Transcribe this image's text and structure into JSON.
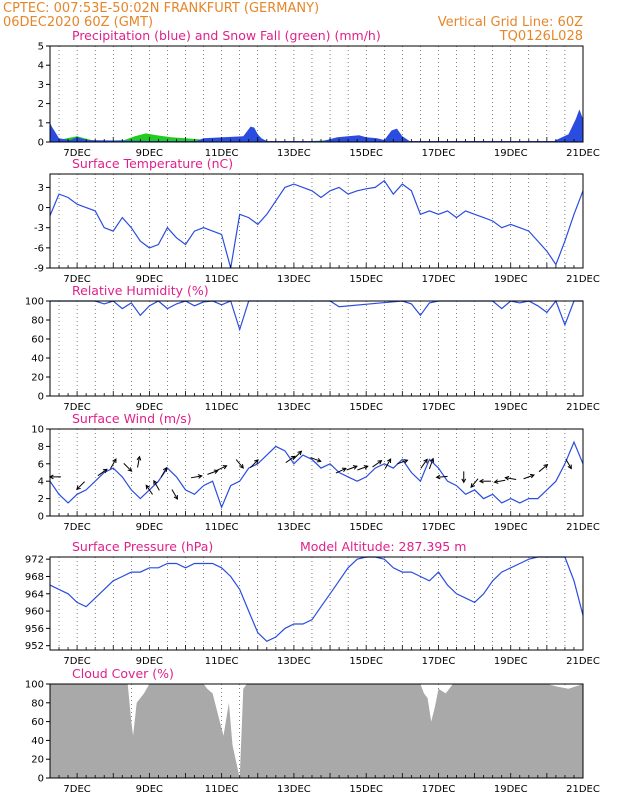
{
  "header": {
    "line1_left": "CPTEC:   007:53E-50:02N  FRANKFURT (GERMANY)",
    "line2_left": "06DEC2020 60Z (GMT)",
    "line2_right": "Vertical Grid Line: 60Z",
    "line3_right": "TQ0126L028"
  },
  "colors": {
    "header": "#e6862a",
    "title": "#e0208a",
    "line": "#2a4de0",
    "rain": "#2a4de0",
    "snow": "#1fcc1f",
    "cloud": "#a9a9a9",
    "arrow": "#000000"
  },
  "x_days": [
    "7DEC",
    "9DEC",
    "11DEC",
    "13DEC",
    "15DEC",
    "17DEC",
    "19DEC",
    "21DEC"
  ],
  "chart_data": [
    {
      "type": "area",
      "title": "Precipitation (blue) and Snow Fall (green) (mm/h)",
      "ylim": [
        0,
        5
      ],
      "yticks": [
        0,
        1,
        2,
        3,
        4,
        5
      ],
      "series": [
        {
          "name": "Precipitation",
          "x": [
            6.25,
            6.3,
            6.4,
            6.5,
            6.8,
            7.0,
            7.1,
            7.3,
            9.0,
            10.2,
            10.3,
            10.5,
            11.6,
            11.8,
            11.9,
            12.0,
            12.1,
            12.25,
            13.8,
            14.2,
            14.5,
            14.8,
            15.0,
            15.3,
            15.5,
            15.7,
            15.85,
            16.0,
            16.2,
            20.2,
            20.6,
            20.8,
            20.9,
            21.0
          ],
          "values": [
            1.0,
            0.8,
            0.5,
            0.2,
            0.1,
            0.25,
            0.2,
            0.1,
            0.05,
            0.05,
            0.05,
            0.2,
            0.3,
            0.8,
            0.75,
            0.4,
            0.2,
            0.05,
            0.05,
            0.25,
            0.3,
            0.35,
            0.25,
            0.2,
            0.1,
            0.6,
            0.7,
            0.3,
            0.05,
            0.05,
            0.4,
            1.2,
            1.7,
            1.2
          ]
        },
        {
          "name": "Snow Fall",
          "x": [
            6.3,
            6.6,
            7.0,
            7.2,
            7.5,
            8.3,
            8.6,
            8.9,
            9.2,
            9.6,
            10.0,
            10.3,
            10.6,
            11.0,
            11.4,
            11.9,
            12.2,
            12.6,
            13.0,
            13.5,
            14.0,
            14.5,
            15.0,
            16.5,
            17.0,
            18.0
          ],
          "values": [
            0.2,
            0.15,
            0.3,
            0.2,
            0.05,
            0.1,
            0.3,
            0.45,
            0.35,
            0.25,
            0.2,
            0.15,
            0.1,
            0.1,
            0.05,
            0.05,
            0.02,
            0.05,
            0.05,
            0.05,
            0.1,
            0.05,
            0.02,
            0.02,
            0.02,
            0.02
          ]
        }
      ]
    },
    {
      "type": "line",
      "title": "Surface Temperature (nC)",
      "ylim": [
        -9,
        5
      ],
      "yticks": [
        -9,
        -6,
        -3,
        0,
        3
      ],
      "x": [
        6.25,
        6.5,
        6.75,
        7.0,
        7.25,
        7.5,
        7.75,
        8.0,
        8.25,
        8.5,
        8.75,
        9.0,
        9.25,
        9.5,
        9.75,
        10.0,
        10.25,
        10.5,
        10.75,
        11.0,
        11.25,
        11.5,
        11.75,
        12.0,
        12.25,
        12.5,
        12.75,
        13.0,
        13.25,
        13.5,
        13.75,
        14.0,
        14.25,
        14.5,
        14.75,
        15.0,
        15.25,
        15.5,
        15.75,
        16.0,
        16.25,
        16.5,
        16.75,
        17.0,
        17.25,
        17.5,
        17.75,
        18.0,
        18.25,
        18.5,
        18.75,
        19.0,
        19.25,
        19.5,
        19.75,
        20.0,
        20.25,
        20.5,
        20.75,
        21.0
      ],
      "values": [
        -1.2,
        2.0,
        1.5,
        0.5,
        0.0,
        -0.5,
        -3.0,
        -3.5,
        -1.5,
        -3.0,
        -5.0,
        -6.0,
        -5.5,
        -3.0,
        -4.5,
        -5.5,
        -3.5,
        -3.0,
        -3.5,
        -4.0,
        -9.0,
        -1.0,
        -1.5,
        -2.5,
        -1.0,
        1.0,
        3.0,
        3.5,
        3.0,
        2.5,
        1.5,
        2.5,
        3.0,
        2.0,
        2.5,
        2.8,
        3.0,
        4.0,
        2.0,
        3.5,
        2.5,
        -1.0,
        -0.5,
        -1.0,
        -0.5,
        -1.5,
        -0.5,
        -1.0,
        -1.5,
        -2.0,
        -3.0,
        -2.5,
        -3.0,
        -3.5,
        -5.0,
        -6.5,
        -8.5,
        -5.0,
        -1.0,
        2.5
      ]
    },
    {
      "type": "line",
      "title": "Relative Humidity (%)",
      "ylim": [
        0,
        100
      ],
      "yticks": [
        0,
        20,
        40,
        60,
        80,
        100
      ],
      "x": [
        6.25,
        7.5,
        7.75,
        8.0,
        8.25,
        8.5,
        8.75,
        9.0,
        9.25,
        9.5,
        9.75,
        10.0,
        10.25,
        10.5,
        10.75,
        11.0,
        11.25,
        11.5,
        11.75,
        12.0,
        14.0,
        14.25,
        16.0,
        16.25,
        16.5,
        16.75,
        17.0,
        18.5,
        18.75,
        19.0,
        19.25,
        19.5,
        19.75,
        20.0,
        20.25,
        20.5,
        20.75,
        21.0
      ],
      "values": [
        100,
        100,
        97,
        100,
        92,
        98,
        85,
        95,
        100,
        92,
        97,
        100,
        95,
        99,
        100,
        96,
        100,
        70,
        100,
        100,
        100,
        94,
        100,
        97,
        85,
        98,
        100,
        100,
        92,
        100,
        98,
        100,
        95,
        88,
        100,
        75,
        100,
        100
      ]
    },
    {
      "type": "line",
      "title": "Surface Wind (m/s)",
      "ylim": [
        0,
        10
      ],
      "yticks": [
        0,
        2,
        4,
        6,
        8,
        10
      ],
      "x": [
        6.25,
        6.5,
        6.75,
        7.0,
        7.25,
        7.5,
        7.75,
        8.0,
        8.25,
        8.5,
        8.75,
        9.0,
        9.25,
        9.5,
        9.75,
        10.0,
        10.25,
        10.5,
        10.75,
        11.0,
        11.25,
        11.5,
        11.75,
        12.0,
        12.25,
        12.5,
        12.75,
        13.0,
        13.25,
        13.5,
        13.75,
        14.0,
        14.25,
        14.5,
        14.75,
        15.0,
        15.25,
        15.5,
        15.75,
        16.0,
        16.25,
        16.5,
        16.75,
        17.0,
        17.25,
        17.5,
        17.75,
        18.0,
        18.25,
        18.5,
        18.75,
        19.0,
        19.25,
        19.5,
        19.75,
        20.0,
        20.25,
        20.5,
        20.75,
        21.0
      ],
      "values": [
        4.0,
        2.5,
        1.5,
        2.5,
        3.0,
        4.0,
        5.0,
        5.5,
        4.5,
        3.0,
        2.0,
        3.0,
        4.0,
        5.5,
        4.5,
        3.0,
        2.5,
        3.5,
        4.0,
        1.0,
        3.5,
        4.0,
        5.5,
        6.0,
        7.0,
        8.0,
        7.5,
        6.0,
        7.0,
        6.5,
        5.5,
        6.0,
        5.0,
        4.5,
        4.0,
        4.5,
        5.5,
        6.0,
        5.5,
        6.5,
        5.0,
        4.0,
        6.5,
        5.5,
        4.0,
        3.5,
        2.5,
        3.0,
        2.0,
        2.5,
        1.5,
        2.0,
        1.5,
        2.0,
        2.0,
        3.0,
        4.0,
        6.0,
        8.5,
        6.0
      ]
    },
    {
      "type": "line",
      "title": "Surface Pressure (hPa)",
      "annotation": "Model Altitude: 287.395 m",
      "ylim": [
        951,
        972.5
      ],
      "yticks": [
        952,
        956,
        960,
        964,
        968,
        972
      ],
      "x": [
        6.25,
        6.5,
        6.75,
        7.0,
        7.25,
        7.5,
        7.75,
        8.0,
        8.25,
        8.5,
        8.75,
        9.0,
        9.25,
        9.5,
        9.75,
        10.0,
        10.25,
        10.5,
        10.75,
        11.0,
        11.25,
        11.5,
        11.75,
        12.0,
        12.25,
        12.5,
        12.75,
        13.0,
        13.25,
        13.5,
        13.75,
        14.0,
        14.25,
        14.5,
        14.75,
        15.0,
        15.25,
        15.5,
        15.75,
        16.0,
        16.25,
        16.5,
        16.75,
        17.0,
        17.25,
        17.5,
        17.75,
        18.0,
        18.25,
        18.5,
        18.75,
        19.0,
        19.25,
        19.5,
        19.75,
        20.0,
        20.25,
        20.5,
        20.75,
        21.0
      ],
      "values": [
        966,
        965,
        964,
        962,
        961,
        963,
        965,
        967,
        968,
        969,
        969,
        970,
        970,
        971,
        971,
        970,
        971,
        971,
        971,
        970,
        968,
        965,
        960,
        955,
        953,
        954,
        956,
        957,
        957,
        958,
        961,
        964,
        967,
        970,
        972,
        973,
        973,
        972,
        970,
        969,
        969,
        968,
        967,
        969,
        966,
        964,
        963,
        962,
        964,
        967,
        969,
        970,
        971,
        972,
        973,
        973,
        973,
        973,
        967,
        959
      ]
    },
    {
      "type": "area",
      "title": "Cloud Cover (%)",
      "ylim": [
        0,
        100
      ],
      "yticks": [
        0,
        20,
        40,
        60,
        80,
        100
      ],
      "x": [
        6.25,
        8.4,
        8.5,
        8.55,
        8.65,
        8.75,
        8.85,
        9.0,
        10.5,
        10.6,
        10.75,
        10.85,
        10.95,
        11.05,
        11.2,
        11.3,
        11.5,
        11.6,
        11.7,
        11.8,
        12.0,
        14.5,
        16.5,
        16.6,
        16.7,
        16.8,
        16.9,
        17.0,
        17.2,
        17.4,
        17.5,
        20.0,
        20.3,
        20.6,
        21.0
      ],
      "values": [
        100,
        100,
        60,
        45,
        80,
        85,
        90,
        100,
        100,
        95,
        90,
        75,
        60,
        45,
        80,
        35,
        0,
        95,
        100,
        100,
        100,
        100,
        100,
        90,
        85,
        60,
        75,
        95,
        90,
        100,
        100,
        100,
        97,
        95,
        100
      ]
    }
  ],
  "wind_arrows": [
    {
      "x": 6.4,
      "y": 4.5,
      "dir": 180
    },
    {
      "x": 7.1,
      "y": 3.5,
      "dir": 225
    },
    {
      "x": 7.7,
      "y": 5.0,
      "dir": 35
    },
    {
      "x": 8.0,
      "y": 6.0,
      "dir": 60
    },
    {
      "x": 8.4,
      "y": 5.6,
      "dir": 315
    },
    {
      "x": 8.7,
      "y": 6.2,
      "dir": 80
    },
    {
      "x": 9.0,
      "y": 3.0,
      "dir": 125
    },
    {
      "x": 9.2,
      "y": 3.5,
      "dir": 120
    },
    {
      "x": 9.4,
      "y": 5.0,
      "dir": 60
    },
    {
      "x": 9.7,
      "y": 2.5,
      "dir": 300
    },
    {
      "x": 10.3,
      "y": 4.5,
      "dir": 10
    },
    {
      "x": 10.75,
      "y": 5.0,
      "dir": 20
    },
    {
      "x": 11.0,
      "y": 5.5,
      "dir": 25
    },
    {
      "x": 11.5,
      "y": 6.0,
      "dir": 310
    },
    {
      "x": 11.9,
      "y": 6.0,
      "dir": 45
    },
    {
      "x": 12.9,
      "y": 6.5,
      "dir": 35
    },
    {
      "x": 13.1,
      "y": 7.0,
      "dir": 45
    },
    {
      "x": 13.6,
      "y": 6.5,
      "dir": 340
    },
    {
      "x": 14.3,
      "y": 5.2,
      "dir": 25
    },
    {
      "x": 14.6,
      "y": 5.5,
      "dir": 20
    },
    {
      "x": 14.9,
      "y": 5.5,
      "dir": 20
    },
    {
      "x": 15.3,
      "y": 6.0,
      "dir": 35
    },
    {
      "x": 15.6,
      "y": 6.0,
      "dir": 60
    },
    {
      "x": 16.0,
      "y": 6.2,
      "dir": 20
    },
    {
      "x": 16.6,
      "y": 6.0,
      "dir": 55
    },
    {
      "x": 16.8,
      "y": 6.0,
      "dir": 70
    },
    {
      "x": 17.1,
      "y": 4.5,
      "dir": 185
    },
    {
      "x": 17.7,
      "y": 4.5,
      "dir": 270
    },
    {
      "x": 18.0,
      "y": 3.8,
      "dir": 230
    },
    {
      "x": 18.3,
      "y": 4.0,
      "dir": 180
    },
    {
      "x": 18.7,
      "y": 4.0,
      "dir": 190
    },
    {
      "x": 19.0,
      "y": 4.3,
      "dir": 170
    },
    {
      "x": 19.5,
      "y": 4.5,
      "dir": 20
    },
    {
      "x": 19.9,
      "y": 5.5,
      "dir": 40
    },
    {
      "x": 20.6,
      "y": 6.0,
      "dir": 300
    }
  ]
}
